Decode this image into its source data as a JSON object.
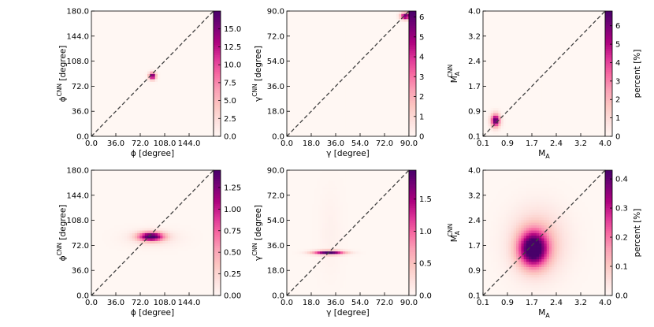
{
  "colors": {
    "cmap": [
      "#fff7f3",
      "#fde0dd",
      "#fcc5c0",
      "#fa9fb5",
      "#f768a1",
      "#dd3497",
      "#ae017e",
      "#7a0177",
      "#49006a"
    ],
    "diagonal": "#404040",
    "frame": "#000000"
  },
  "chart_data": [
    {
      "type": "heatmap",
      "xlabel": "ϕ [degree]",
      "ylabel_base": "ϕ",
      "ylabel_sup": "CNN",
      "ylabel_rest": " [degree]",
      "xlim": [
        0,
        180
      ],
      "ylim": [
        0,
        180
      ],
      "xticks": [
        "0.0",
        "36.0",
        "72.0",
        "108.0",
        "144.0"
      ],
      "yticks": [
        "0.0",
        "36.0",
        "72.0",
        "108.0",
        "144.0",
        "180.0"
      ],
      "colorbar": {
        "ticks": [
          "0.0",
          "2.5",
          "5.0",
          "7.5",
          "10.0",
          "12.5",
          "15.0"
        ],
        "max": 17.5,
        "label": ""
      },
      "blobs": [
        {
          "x": 90,
          "y": 87,
          "sx": 3.5,
          "sy": 3.5,
          "amp": 17.5
        }
      ],
      "diagonal": true
    },
    {
      "type": "heatmap",
      "xlabel": "γ [degree]",
      "ylabel_base": "γ",
      "ylabel_sup": "CNN",
      "ylabel_rest": " [degree]",
      "xlim": [
        0,
        90
      ],
      "ylim": [
        0,
        90
      ],
      "xticks": [
        "0.0",
        "18.0",
        "36.0",
        "54.0",
        "72.0",
        "90.0"
      ],
      "yticks": [
        "0.0",
        "18.0",
        "36.0",
        "54.0",
        "72.0",
        "90.0"
      ],
      "colorbar": {
        "ticks": [
          "0",
          "1",
          "2",
          "3",
          "4",
          "5",
          "6"
        ],
        "max": 6.3,
        "label": ""
      },
      "blobs": [
        {
          "x": 87.5,
          "y": 86.5,
          "sx": 2.5,
          "sy": 1.6,
          "amp": 6.3
        }
      ],
      "diagonal": true
    },
    {
      "type": "heatmap",
      "xlabel_base": "M",
      "xlabel_sub": "A",
      "ylabel_base": "M",
      "ylabel_sup": "CNN",
      "ylabel_sub": "A",
      "xlim": [
        0.1,
        4.0
      ],
      "ylim": [
        0.1,
        4.0
      ],
      "xticks": [
        "0.1",
        "0.9",
        "1.7",
        "2.4",
        "3.2",
        "4.0"
      ],
      "yticks": [
        "0.1",
        "0.9",
        "1.7",
        "2.4",
        "3.2",
        "4.0"
      ],
      "colorbar": {
        "ticks": [
          "0",
          "1",
          "2",
          "3",
          "4",
          "5",
          "6"
        ],
        "max": 6.8,
        "label": "percent [%]"
      },
      "blobs": [
        {
          "x": 0.5,
          "y": 0.6,
          "sx": 0.1,
          "sy": 0.14,
          "amp": 6.8
        }
      ],
      "diagonal": true
    },
    {
      "type": "heatmap",
      "xlabel": "ϕ [degree]",
      "ylabel_base": "ϕ",
      "ylabel_sup": "CNN",
      "ylabel_rest": " [degree]",
      "xlim": [
        0,
        180
      ],
      "ylim": [
        0,
        180
      ],
      "xticks": [
        "0.0",
        "36.0",
        "72.0",
        "108.0",
        "144.0"
      ],
      "yticks": [
        "0.0",
        "36.0",
        "72.0",
        "108.0",
        "144.0",
        "180.0"
      ],
      "colorbar": {
        "ticks": [
          "0.00",
          "0.25",
          "0.50",
          "0.75",
          "1.00",
          "1.25"
        ],
        "max": 1.45,
        "label": ""
      },
      "blobs": [
        {
          "x": 88,
          "y": 85,
          "sx": 13,
          "sy": 4.5,
          "amp": 1.45
        },
        {
          "x": 90,
          "y": 83,
          "sx": 28,
          "sy": 9,
          "amp": 0.15
        }
      ],
      "diagonal": true
    },
    {
      "type": "heatmap",
      "xlabel": "γ [degree]",
      "ylabel_base": "γ",
      "ylabel_sup": "CNN",
      "ylabel_rest": " [degree]",
      "xlim": [
        0,
        90
      ],
      "ylim": [
        0,
        90
      ],
      "xticks": [
        "0.0",
        "18.0",
        "36.0",
        "54.0",
        "72.0",
        "90.0"
      ],
      "yticks": [
        "0.0",
        "18.0",
        "36.0",
        "54.0",
        "72.0",
        "90.0"
      ],
      "colorbar": {
        "ticks": [
          "0.0",
          "0.5",
          "1.0",
          "1.5"
        ],
        "max": 1.95,
        "label": ""
      },
      "blobs": [
        {
          "x": 31,
          "y": 31,
          "sx": 8,
          "sy": 1.0,
          "amp": 1.95
        },
        {
          "x": 32,
          "y": 45,
          "sx": 6,
          "sy": 22,
          "amp": 0.07
        }
      ],
      "diagonal": true
    },
    {
      "type": "heatmap",
      "xlabel_base": "M",
      "xlabel_sub": "A",
      "ylabel_base": "M",
      "ylabel_sup": "CNN",
      "ylabel_sub": "A",
      "xlim": [
        0.1,
        4.0
      ],
      "ylim": [
        0.1,
        4.0
      ],
      "xticks": [
        "0.1",
        "0.9",
        "1.7",
        "2.4",
        "3.2",
        "4.0"
      ],
      "yticks": [
        "0.1",
        "0.9",
        "1.7",
        "2.4",
        "3.2",
        "4.0"
      ],
      "colorbar": {
        "ticks": [
          "0.0",
          "0.1",
          "0.2",
          "0.3",
          "0.4"
        ],
        "max": 0.43,
        "label": "percent [%]"
      },
      "blobs": [
        {
          "x": 1.7,
          "y": 1.55,
          "sx": 0.32,
          "sy": 0.38,
          "amp": 0.43
        },
        {
          "x": 1.85,
          "y": 1.75,
          "sx": 0.6,
          "sy": 0.7,
          "amp": 0.12
        }
      ],
      "diagonal": true
    }
  ]
}
